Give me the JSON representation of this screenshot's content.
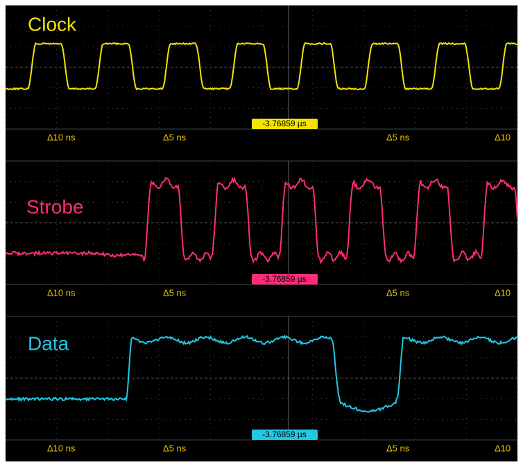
{
  "panels": [
    {
      "label": "Clock",
      "readout": "-3.76859 µs",
      "markers": [
        "Δ10 ns",
        "Δ5 ns",
        "Δ5 ns",
        "Δ10"
      ]
    },
    {
      "label": "Strobe",
      "readout": "-3.76859 µs",
      "markers": [
        "Δ10 ns",
        "Δ5 ns",
        "Δ5 ns",
        "Δ10"
      ]
    },
    {
      "label": "Data",
      "readout": "-3.76859 µs",
      "markers": [
        "Δ10 ns",
        "Δ5 ns",
        "Δ5 ns",
        "Δ10"
      ]
    }
  ]
}
